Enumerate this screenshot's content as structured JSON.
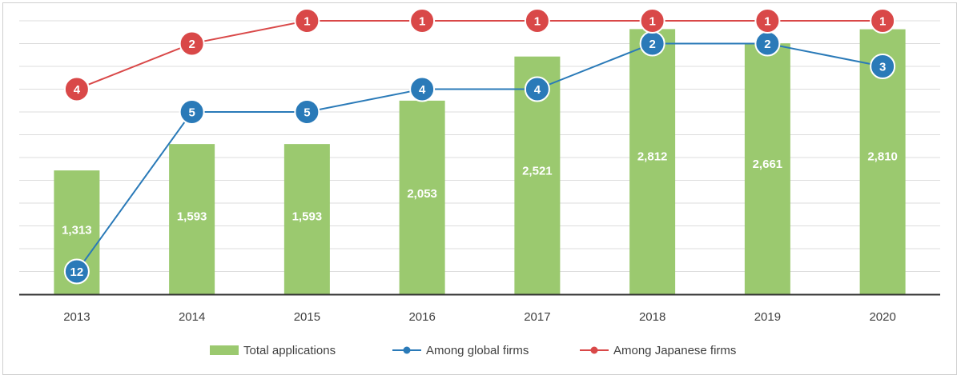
{
  "chart_data": {
    "type": "bar",
    "categories": [
      "2013",
      "2014",
      "2015",
      "2016",
      "2017",
      "2018",
      "2019",
      "2020"
    ],
    "bars": {
      "name": "Total applications",
      "values": [
        1313,
        1593,
        1593,
        2053,
        2521,
        2812,
        2661,
        2810
      ],
      "labels": [
        "1,313",
        "1,593",
        "1,593",
        "2,053",
        "2,521",
        "2,812",
        "2,661",
        "2,810"
      ],
      "color": "#9bc96f"
    },
    "series": [
      {
        "name": "Among global firms",
        "values": [
          12,
          5,
          5,
          4,
          4,
          2,
          2,
          3
        ],
        "color": "#2a7ab8"
      },
      {
        "name": "Among Japanese firms",
        "values": [
          4,
          2,
          1,
          1,
          1,
          1,
          1,
          1
        ],
        "color": "#d94848"
      }
    ],
    "bar_axis": {
      "range": [
        0,
        2900
      ]
    },
    "rank_axis": {
      "range": [
        13,
        1
      ],
      "inverted": true
    },
    "grid": true,
    "legend": "bottom",
    "title": "",
    "xlabel": "",
    "ylabel": ""
  }
}
